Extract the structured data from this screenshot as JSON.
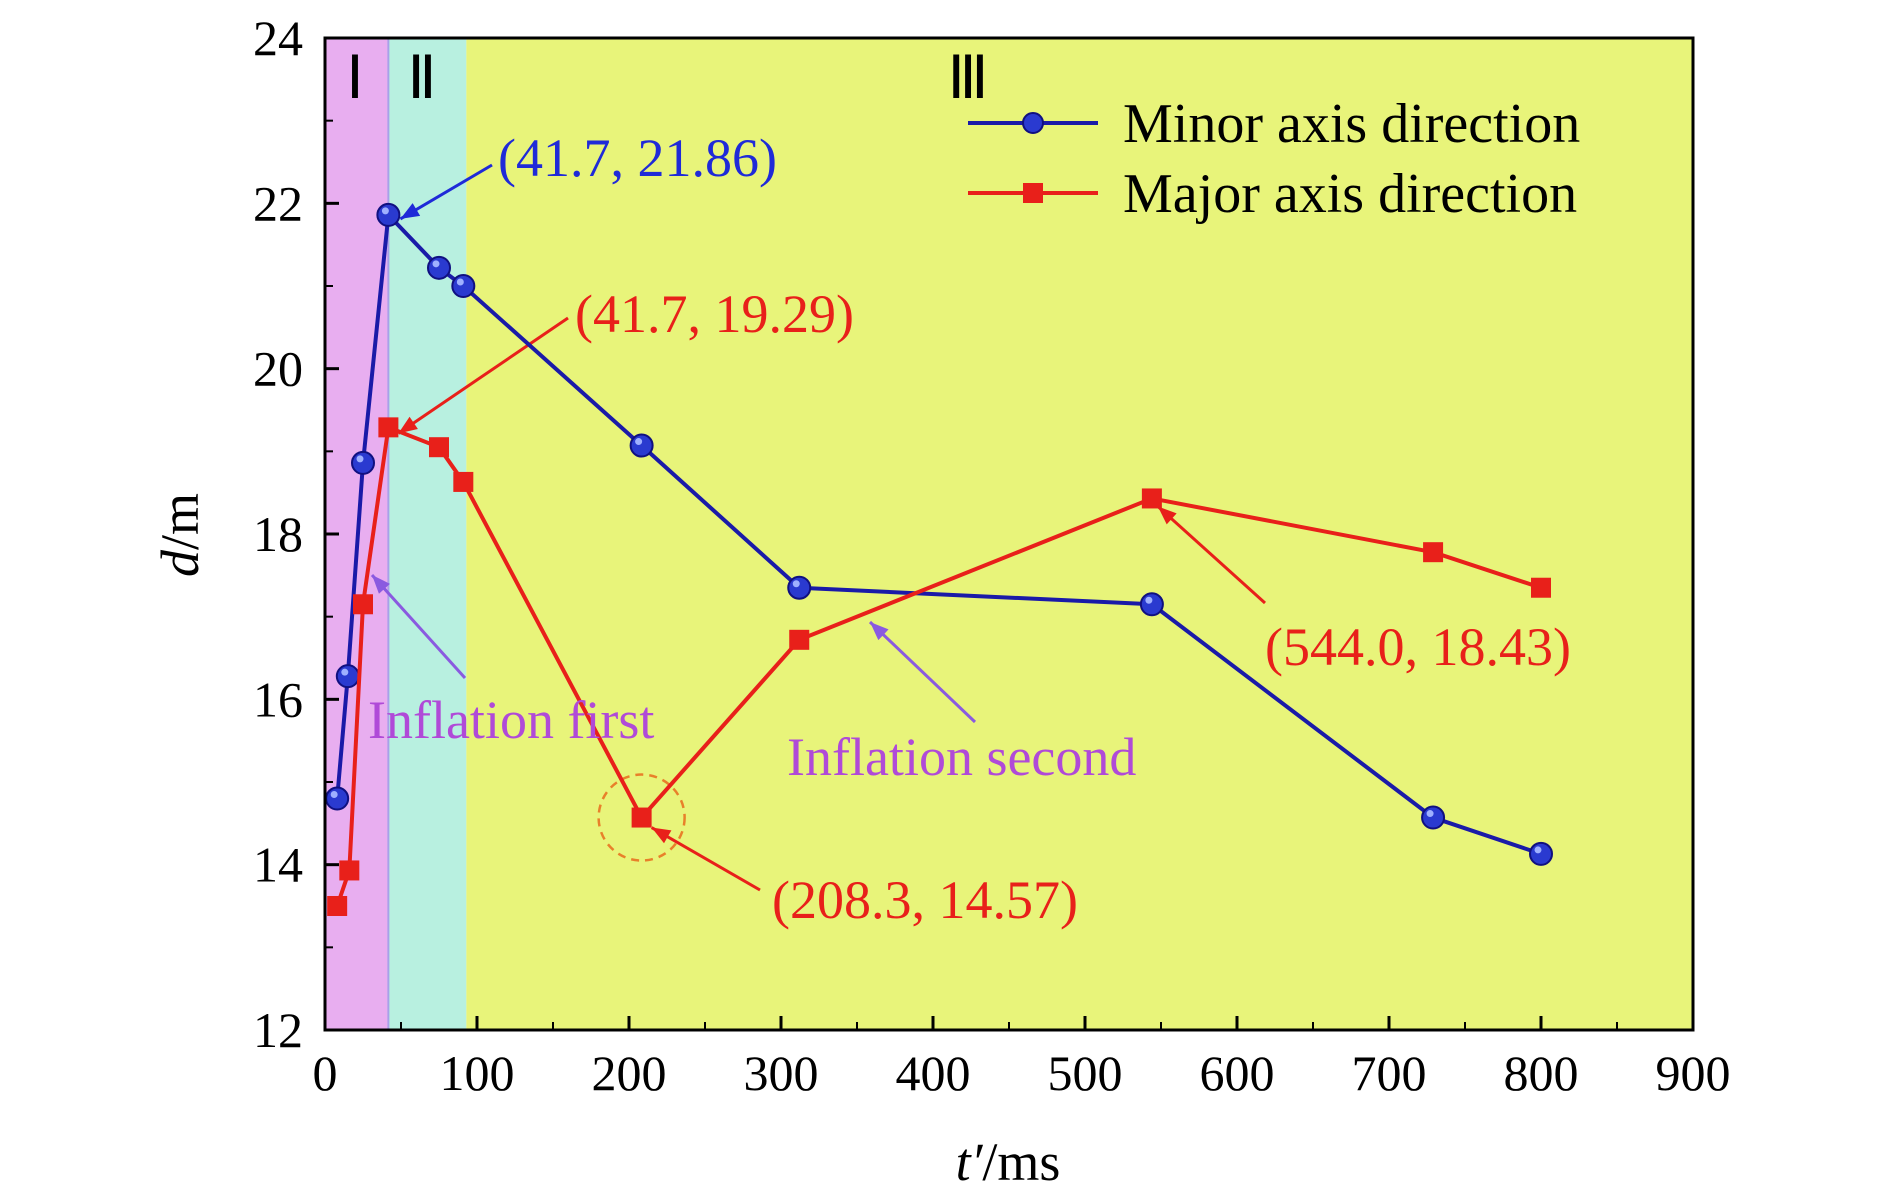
{
  "chart_data": {
    "type": "line",
    "xlabel_italic": "t′",
    "xlabel_unit": "/ms",
    "ylabel_italic": "d",
    "ylabel_unit": "/m",
    "xlim": [
      0,
      900
    ],
    "ylim": [
      12,
      24
    ],
    "xticks": [
      "0",
      "100",
      "200",
      "300",
      "400",
      "500",
      "600",
      "700",
      "800",
      "900"
    ],
    "yticks": [
      "12",
      "14",
      "16",
      "18",
      "20",
      "22",
      "24"
    ],
    "legend_position": "top-right",
    "regions": [
      {
        "label": "Ⅰ",
        "x": [
          0,
          41.7
        ],
        "color": "#e8aef0"
      },
      {
        "label": "Ⅱ",
        "x": [
          41.7,
          93
        ],
        "color": "#b8f0e0"
      },
      {
        "label": "Ⅲ",
        "x": [
          93,
          900
        ],
        "color": "#e8f47a"
      }
    ],
    "series": [
      {
        "name": "Minor axis direction",
        "color": "#1a1aa8",
        "marker": "circle",
        "x": [
          8,
          15,
          25,
          41.7,
          75,
          91,
          208.3,
          312,
          544,
          729,
          800
        ],
        "y": [
          14.8,
          16.28,
          18.86,
          21.86,
          21.22,
          21.0,
          19.07,
          17.35,
          17.15,
          14.57,
          14.13
        ]
      },
      {
        "name": "Major axis direction",
        "color": "#e8201a",
        "marker": "square",
        "x": [
          8,
          16,
          25,
          41.7,
          75,
          91,
          208.3,
          312,
          544,
          729,
          800
        ],
        "y": [
          13.5,
          13.93,
          17.15,
          19.29,
          19.05,
          18.63,
          14.57,
          16.72,
          18.43,
          17.78,
          17.35
        ]
      }
    ],
    "annotations": [
      {
        "text": "(41.7, 21.86)",
        "color": "#1f2ad8"
      },
      {
        "text": "(41.7, 19.29)",
        "color": "#e8201a"
      },
      {
        "text": "(208.3, 14.57)",
        "color": "#e8201a"
      },
      {
        "text": "(544.0, 18.43)",
        "color": "#e8201a"
      },
      {
        "text": "Inflation first",
        "color": "#b04ad8"
      },
      {
        "text": "Inflation second",
        "color": "#b04ad8"
      }
    ]
  }
}
